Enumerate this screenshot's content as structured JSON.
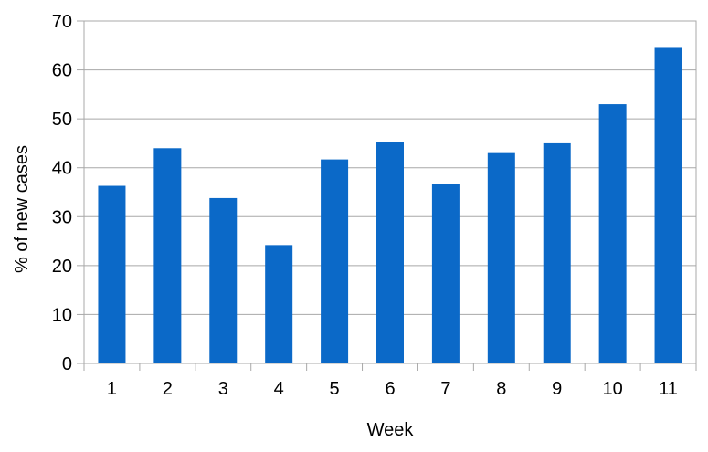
{
  "chart_data": {
    "type": "bar",
    "categories": [
      "1",
      "2",
      "3",
      "4",
      "5",
      "6",
      "7",
      "8",
      "9",
      "10",
      "11"
    ],
    "values": [
      36.3,
      44,
      33.8,
      24.2,
      41.7,
      45.3,
      36.7,
      43,
      45,
      53,
      64.5
    ],
    "title": "",
    "xlabel": "Week",
    "ylabel": "% of new cases",
    "ylim": [
      0,
      70
    ],
    "ytick_step": 10,
    "ytick_labels": [
      "0",
      "10",
      "20",
      "30",
      "40",
      "50",
      "60",
      "70"
    ],
    "grid": true,
    "legend": false,
    "legend_position": "none",
    "colors": {
      "bar": "#0B69C8",
      "gridline": "#A8A8A8",
      "axis_border": "#A8A8A8",
      "text": "#000000",
      "background": "#FFFFFF"
    }
  }
}
